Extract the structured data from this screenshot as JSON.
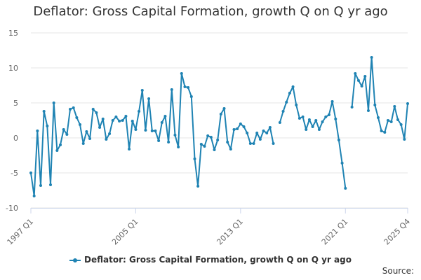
{
  "chart_data": {
    "type": "line",
    "title": "Deflator: Gross Capital Formation, growth Q on Q yr ago",
    "xlabel": "",
    "ylabel": "",
    "ylim": [
      -10,
      15
    ],
    "yticks": [
      15,
      10,
      5,
      0,
      -5,
      -10
    ],
    "xticks": [
      "1997 Q1",
      "2005 Q1",
      "2013 Q1",
      "2021 Q1",
      "2025 Q4"
    ],
    "grid": true,
    "legend_position": "bottom",
    "color": "#1f83b3",
    "start_quarter": "1997 Q1",
    "series": [
      {
        "name": "Deflator: Gross Capital Formation, growth Q on Q yr ago",
        "values": [
          -5.0,
          -8.3,
          1.0,
          -6.8,
          3.8,
          1.7,
          -6.7,
          5.0,
          -1.8,
          -1.0,
          1.2,
          0.5,
          4.1,
          4.3,
          2.9,
          1.9,
          -0.8,
          0.9,
          -0.1,
          4.1,
          3.6,
          1.5,
          2.7,
          -0.2,
          0.6,
          2.5,
          3.0,
          2.4,
          2.5,
          3.1,
          -1.6,
          2.4,
          1.2,
          3.8,
          6.8,
          1.1,
          5.6,
          1.0,
          1.0,
          -0.4,
          2.2,
          3.1,
          -0.6,
          6.9,
          0.4,
          -1.3,
          9.2,
          7.3,
          7.2,
          5.9,
          -3.0,
          -6.9,
          -0.9,
          -1.2,
          0.3,
          0.1,
          -1.7,
          -0.3,
          3.4,
          4.2,
          -0.6,
          -1.6,
          1.2,
          1.3,
          2.0,
          1.6,
          0.7,
          -0.8,
          -0.8,
          0.7,
          -0.2,
          1.0,
          0.7,
          1.5,
          -0.8,
          null,
          2.2,
          3.8,
          5.1,
          6.4,
          7.3,
          4.7,
          2.8,
          3.0,
          1.2,
          2.6,
          1.6,
          2.5,
          1.2,
          2.3,
          3.0,
          3.3,
          5.2,
          2.7,
          -0.3,
          -3.6,
          -7.2,
          null,
          4.4,
          9.2,
          8.2,
          7.4,
          8.8,
          3.9,
          11.5,
          4.7,
          2.9,
          1.0,
          0.8,
          2.5,
          2.3,
          4.5,
          2.6,
          1.9,
          -0.2,
          4.9
        ]
      }
    ]
  },
  "legend": {
    "label": "Deflator: Gross Capital Formation, growth Q on Q yr ago"
  },
  "footer": {
    "source_label": "Source:"
  }
}
